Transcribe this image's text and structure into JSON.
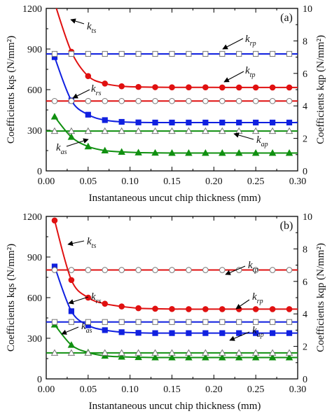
{
  "chart_data": [
    {
      "type": "line",
      "panel_label": "(a)",
      "xlabel": "Instantaneous uncut chip thickness (mm)",
      "ylabel_left": "Coefficients kqs (N/mm²)",
      "ylabel_right": "Coefficients kqp (N/mm²)",
      "xlim": [
        0.0,
        0.3
      ],
      "ylim_left": [
        0,
        1200
      ],
      "ylim_right": [
        0,
        10
      ],
      "xticks": [
        "0.00",
        "0.05",
        "0.10",
        "0.15",
        "0.20",
        "0.25",
        "0.30"
      ],
      "yticks_left": [
        "0",
        "300",
        "600",
        "900",
        "1200"
      ],
      "yticks_right": [
        "0",
        "2",
        "4",
        "6",
        "8",
        "10"
      ],
      "series": [
        {
          "key": "kts",
          "label_main": "k",
          "label_sub": "ts",
          "color": "#e01010",
          "marker": "circle",
          "fill": "filled",
          "axis": "left",
          "x": [
            0.01,
            0.03,
            0.05,
            0.07,
            0.09,
            0.11,
            0.13,
            0.15,
            0.17,
            0.19,
            0.21,
            0.23,
            0.25,
            0.27,
            0.29
          ],
          "y": [
            1240,
            880,
            700,
            645,
            625,
            620,
            618,
            617,
            617,
            617,
            616,
            616,
            616,
            616,
            616
          ]
        },
        {
          "key": "krs",
          "label_main": "k",
          "label_sub": "rs",
          "color": "#1020e0",
          "marker": "square",
          "fill": "filled",
          "axis": "left",
          "x": [
            0.01,
            0.03,
            0.05,
            0.07,
            0.09,
            0.11,
            0.13,
            0.15,
            0.17,
            0.19,
            0.21,
            0.23,
            0.25,
            0.27,
            0.29
          ],
          "y": [
            840,
            520,
            415,
            375,
            362,
            358,
            357,
            357,
            357,
            357,
            357,
            357,
            357,
            357,
            357
          ]
        },
        {
          "key": "kas",
          "label_main": "k",
          "label_sub": "as",
          "color": "#109010",
          "marker": "triangle",
          "fill": "filled",
          "axis": "left",
          "x": [
            0.01,
            0.03,
            0.05,
            0.07,
            0.09,
            0.11,
            0.13,
            0.15,
            0.17,
            0.19,
            0.21,
            0.23,
            0.25,
            0.27,
            0.29
          ],
          "y": [
            400,
            250,
            180,
            150,
            140,
            135,
            133,
            132,
            132,
            132,
            132,
            132,
            132,
            132,
            132
          ]
        },
        {
          "key": "krp",
          "label_main": "k",
          "label_sub": "rp",
          "color": "#1020e0",
          "marker": "square",
          "fill": "open",
          "axis": "right",
          "x": [
            0.01,
            0.03,
            0.05,
            0.07,
            0.09,
            0.11,
            0.13,
            0.15,
            0.17,
            0.19,
            0.21,
            0.23,
            0.25,
            0.27,
            0.29
          ],
          "y": [
            7.2,
            7.2,
            7.2,
            7.2,
            7.2,
            7.2,
            7.2,
            7.2,
            7.2,
            7.2,
            7.2,
            7.2,
            7.2,
            7.2,
            7.2
          ]
        },
        {
          "key": "ktp",
          "label_main": "k",
          "label_sub": "tp",
          "color": "#e01010",
          "marker": "circle",
          "fill": "open",
          "axis": "right",
          "x": [
            0.01,
            0.03,
            0.05,
            0.07,
            0.09,
            0.11,
            0.13,
            0.15,
            0.17,
            0.19,
            0.21,
            0.23,
            0.25,
            0.27,
            0.29
          ],
          "y": [
            4.3,
            4.3,
            4.3,
            4.3,
            4.3,
            4.3,
            4.3,
            4.3,
            4.3,
            4.3,
            4.3,
            4.3,
            4.3,
            4.3,
            4.3
          ]
        },
        {
          "key": "kap",
          "label_main": "k",
          "label_sub": "ap",
          "color": "#109010",
          "marker": "triangle",
          "fill": "open",
          "axis": "right",
          "x": [
            0.01,
            0.03,
            0.05,
            0.07,
            0.09,
            0.11,
            0.13,
            0.15,
            0.17,
            0.19,
            0.21,
            0.23,
            0.25,
            0.27,
            0.29
          ],
          "y": [
            2.45,
            2.45,
            2.45,
            2.45,
            2.45,
            2.45,
            2.45,
            2.45,
            2.45,
            2.45,
            2.45,
            2.45,
            2.45,
            2.45,
            2.45
          ]
        }
      ]
    },
    {
      "type": "line",
      "panel_label": "(b)",
      "xlabel": "Instantaneous uncut chip thickness (mm)",
      "ylabel_left": "Coefficients kqs (N/mm²)",
      "ylabel_right": "Coefficients kqp (N/mm²)",
      "xlim": [
        0.0,
        0.3
      ],
      "ylim_left": [
        0,
        1200
      ],
      "ylim_right": [
        0,
        10
      ],
      "xticks": [
        "0.00",
        "0.05",
        "0.10",
        "0.15",
        "0.20",
        "0.25",
        "0.30"
      ],
      "yticks_left": [
        "0",
        "300",
        "600",
        "900",
        "1200"
      ],
      "yticks_right": [
        "0",
        "2",
        "4",
        "6",
        "8",
        "10"
      ],
      "series": [
        {
          "key": "kts",
          "label_main": "k",
          "label_sub": "ts",
          "color": "#e01010",
          "marker": "circle",
          "fill": "filled",
          "axis": "left",
          "x": [
            0.01,
            0.03,
            0.05,
            0.07,
            0.09,
            0.11,
            0.13,
            0.15,
            0.17,
            0.19,
            0.21,
            0.23,
            0.25,
            0.27,
            0.29
          ],
          "y": [
            1170,
            730,
            600,
            555,
            535,
            522,
            518,
            516,
            515,
            515,
            515,
            515,
            515,
            515,
            515
          ]
        },
        {
          "key": "krs",
          "label_main": "k",
          "label_sub": "rs",
          "color": "#1020e0",
          "marker": "square",
          "fill": "filled",
          "axis": "left",
          "x": [
            0.01,
            0.03,
            0.05,
            0.07,
            0.09,
            0.11,
            0.13,
            0.15,
            0.17,
            0.19,
            0.21,
            0.23,
            0.25,
            0.27,
            0.29
          ],
          "y": [
            830,
            500,
            395,
            360,
            345,
            340,
            338,
            338,
            338,
            338,
            338,
            338,
            338,
            338,
            338
          ]
        },
        {
          "key": "kas",
          "label_main": "k",
          "label_sub": "as",
          "color": "#109010",
          "marker": "triangle",
          "fill": "filled",
          "axis": "left",
          "x": [
            0.01,
            0.03,
            0.05,
            0.07,
            0.09,
            0.11,
            0.13,
            0.15,
            0.17,
            0.19,
            0.21,
            0.23,
            0.25,
            0.27,
            0.29
          ],
          "y": [
            400,
            250,
            195,
            170,
            163,
            160,
            158,
            158,
            158,
            158,
            158,
            158,
            158,
            158,
            158
          ]
        },
        {
          "key": "ktp",
          "label_main": "k",
          "label_sub": "tp",
          "color": "#e01010",
          "marker": "circle",
          "fill": "open",
          "axis": "right",
          "x": [
            0.01,
            0.03,
            0.05,
            0.07,
            0.09,
            0.11,
            0.13,
            0.15,
            0.17,
            0.19,
            0.21,
            0.23,
            0.25,
            0.27,
            0.29
          ],
          "y": [
            6.7,
            6.7,
            6.7,
            6.7,
            6.7,
            6.7,
            6.7,
            6.7,
            6.7,
            6.7,
            6.7,
            6.7,
            6.7,
            6.7,
            6.7
          ]
        },
        {
          "key": "krp",
          "label_main": "k",
          "label_sub": "rp",
          "color": "#1020e0",
          "marker": "square",
          "fill": "open",
          "axis": "right",
          "x": [
            0.01,
            0.03,
            0.05,
            0.07,
            0.09,
            0.11,
            0.13,
            0.15,
            0.17,
            0.19,
            0.21,
            0.23,
            0.25,
            0.27,
            0.29
          ],
          "y": [
            3.5,
            3.5,
            3.5,
            3.5,
            3.5,
            3.5,
            3.5,
            3.5,
            3.5,
            3.5,
            3.5,
            3.5,
            3.5,
            3.5,
            3.5
          ]
        },
        {
          "key": "kap",
          "label_main": "k",
          "label_sub": "ap",
          "color": "#109010",
          "marker": "triangle",
          "fill": "open",
          "axis": "right",
          "x": [
            0.01,
            0.03,
            0.05,
            0.07,
            0.09,
            0.11,
            0.13,
            0.15,
            0.17,
            0.19,
            0.21,
            0.23,
            0.25,
            0.27,
            0.29
          ],
          "y": [
            1.6,
            1.6,
            1.6,
            1.6,
            1.6,
            1.6,
            1.6,
            1.6,
            1.6,
            1.6,
            1.6,
            1.6,
            1.6,
            1.6,
            1.6
          ]
        }
      ]
    }
  ]
}
